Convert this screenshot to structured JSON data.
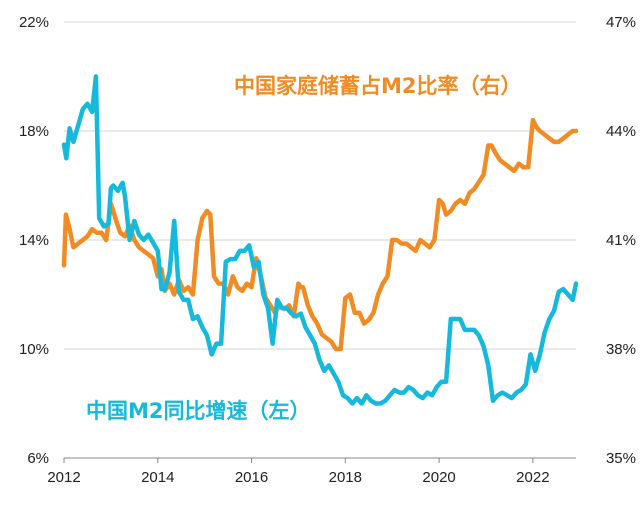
{
  "chart_data": {
    "type": "line",
    "xlabel": "",
    "ylabel_left": "",
    "ylabel_right": "",
    "x_ticks": [
      "2012",
      "2014",
      "2016",
      "2018",
      "2020",
      "2022"
    ],
    "xlim": [
      2012.0,
      2022.92
    ],
    "left_axis": {
      "ylim": [
        6,
        22
      ],
      "ticks": [
        "6%",
        "10%",
        "14%",
        "18%",
        "22%"
      ]
    },
    "right_axis": {
      "ylim": [
        35,
        47
      ],
      "ticks": [
        "35%",
        "38%",
        "41%",
        "44%",
        "47%"
      ]
    },
    "grid": "horizontal",
    "series": [
      {
        "name": "中国家庭储蓄占M2比率（右）",
        "axis": "right",
        "color": "#F08C23",
        "x": [
          2012.0,
          2012.04,
          2012.12,
          2012.2,
          2012.3,
          2012.4,
          2012.5,
          2012.6,
          2012.7,
          2012.8,
          2012.9,
          2013.0,
          2013.05,
          2013.12,
          2013.2,
          2013.3,
          2013.4,
          2013.5,
          2013.6,
          2013.7,
          2013.8,
          2013.9,
          2014.0,
          2014.08,
          2014.15,
          2014.25,
          2014.35,
          2014.45,
          2014.55,
          2014.65,
          2014.75,
          2014.85,
          2014.95,
          2015.05,
          2015.12,
          2015.2,
          2015.3,
          2015.4,
          2015.5,
          2015.6,
          2015.7,
          2015.8,
          2015.9,
          2016.0,
          2016.1,
          2016.2,
          2016.3,
          2016.4,
          2016.5,
          2016.6,
          2016.7,
          2016.8,
          2016.9,
          2017.0,
          2017.05,
          2017.1,
          2017.2,
          2017.3,
          2017.4,
          2017.5,
          2017.6,
          2017.7,
          2017.8,
          2017.9,
          2018.0,
          2018.1,
          2018.2,
          2018.3,
          2018.4,
          2018.5,
          2018.6,
          2018.7,
          2018.8,
          2018.9,
          2019.0,
          2019.1,
          2019.2,
          2019.3,
          2019.4,
          2019.5,
          2019.6,
          2019.7,
          2019.8,
          2019.9,
          2020.0,
          2020.08,
          2020.15,
          2020.25,
          2020.35,
          2020.45,
          2020.55,
          2020.65,
          2020.75,
          2020.85,
          2020.95,
          2021.05,
          2021.12,
          2021.2,
          2021.3,
          2021.4,
          2021.5,
          2021.6,
          2021.7,
          2021.8,
          2021.9,
          2022.0,
          2022.08,
          2022.15,
          2022.25,
          2022.35,
          2022.45,
          2022.55,
          2022.65,
          2022.75,
          2022.85,
          2022.92
        ],
        "values": [
          40.3,
          41.7,
          41.3,
          40.8,
          40.9,
          41.0,
          41.1,
          41.3,
          41.2,
          41.2,
          41.0,
          42.0,
          41.8,
          41.5,
          41.2,
          41.1,
          41.4,
          41.0,
          40.8,
          40.7,
          40.6,
          40.5,
          40.0,
          40.2,
          39.6,
          39.8,
          39.5,
          39.9,
          39.6,
          39.7,
          39.5,
          41.0,
          41.6,
          41.8,
          41.7,
          40.0,
          39.8,
          39.8,
          39.5,
          40.0,
          39.7,
          39.6,
          39.8,
          39.7,
          40.5,
          40.0,
          39.4,
          39.2,
          39.0,
          39.2,
          39.1,
          39.2,
          38.9,
          39.8,
          39.7,
          39.7,
          39.2,
          38.9,
          38.7,
          38.4,
          38.3,
          38.2,
          38.0,
          38.0,
          39.4,
          39.5,
          39.0,
          39.0,
          38.7,
          38.8,
          39.0,
          39.5,
          39.8,
          40.0,
          41.0,
          41.0,
          40.9,
          40.9,
          40.8,
          40.7,
          41.0,
          40.9,
          40.8,
          41.0,
          42.1,
          42.0,
          41.7,
          41.8,
          42.0,
          42.1,
          42.0,
          42.3,
          42.4,
          42.6,
          42.8,
          43.6,
          43.6,
          43.4,
          43.2,
          43.1,
          43.0,
          42.9,
          43.1,
          43.0,
          43.0,
          44.3,
          44.1,
          44.0,
          43.9,
          43.8,
          43.7,
          43.7,
          43.8,
          43.9,
          44.0,
          44.0
        ]
      },
      {
        "name": "中国M2同比增速（左）",
        "axis": "left",
        "color": "#15B9DB",
        "x": [
          2012.0,
          2012.05,
          2012.12,
          2012.2,
          2012.3,
          2012.4,
          2012.5,
          2012.6,
          2012.68,
          2012.72,
          2012.75,
          2012.85,
          2012.95,
          2013.0,
          2013.05,
          2013.15,
          2013.25,
          2013.3,
          2013.4,
          2013.5,
          2013.6,
          2013.7,
          2013.8,
          2013.9,
          2014.0,
          2014.08,
          2014.15,
          2014.25,
          2014.35,
          2014.45,
          2014.55,
          2014.65,
          2014.75,
          2014.85,
          2014.95,
          2015.05,
          2015.15,
          2015.25,
          2015.35,
          2015.45,
          2015.55,
          2015.65,
          2015.75,
          2015.85,
          2015.95,
          2016.05,
          2016.15,
          2016.25,
          2016.35,
          2016.45,
          2016.55,
          2016.65,
          2016.75,
          2016.85,
          2016.95,
          2017.05,
          2017.15,
          2017.25,
          2017.35,
          2017.45,
          2017.55,
          2017.65,
          2017.75,
          2017.85,
          2017.95,
          2018.05,
          2018.15,
          2018.25,
          2018.35,
          2018.45,
          2018.55,
          2018.65,
          2018.75,
          2018.85,
          2018.95,
          2019.05,
          2019.15,
          2019.25,
          2019.35,
          2019.45,
          2019.55,
          2019.65,
          2019.75,
          2019.85,
          2019.95,
          2020.05,
          2020.15,
          2020.25,
          2020.35,
          2020.45,
          2020.55,
          2020.65,
          2020.75,
          2020.85,
          2020.95,
          2021.05,
          2021.15,
          2021.25,
          2021.35,
          2021.45,
          2021.55,
          2021.65,
          2021.75,
          2021.85,
          2021.95,
          2022.05,
          2022.15,
          2022.25,
          2022.35,
          2022.45,
          2022.55,
          2022.65,
          2022.75,
          2022.85,
          2022.92
        ],
        "values": [
          17.5,
          17.0,
          18.1,
          17.6,
          18.2,
          18.8,
          19.0,
          18.7,
          20.0,
          17.0,
          14.8,
          14.5,
          14.6,
          15.9,
          16.0,
          15.8,
          16.1,
          15.6,
          14.0,
          14.7,
          14.2,
          14.0,
          14.2,
          13.9,
          13.6,
          12.2,
          12.2,
          12.8,
          14.7,
          12.1,
          11.8,
          11.8,
          11.1,
          11.2,
          10.8,
          10.5,
          9.8,
          10.2,
          10.2,
          13.2,
          13.3,
          13.3,
          13.6,
          13.6,
          13.8,
          13.0,
          13.2,
          12.0,
          11.5,
          10.2,
          11.8,
          11.5,
          11.5,
          11.3,
          11.2,
          11.3,
          10.8,
          10.5,
          10.2,
          9.6,
          9.2,
          9.4,
          9.1,
          8.8,
          8.3,
          8.2,
          8.0,
          8.2,
          8.0,
          8.3,
          8.1,
          8.0,
          8.0,
          8.1,
          8.3,
          8.5,
          8.4,
          8.4,
          8.6,
          8.5,
          8.3,
          8.2,
          8.4,
          8.3,
          8.6,
          8.8,
          8.8,
          11.1,
          11.1,
          11.1,
          10.7,
          10.7,
          10.7,
          10.5,
          10.1,
          9.4,
          8.1,
          8.3,
          8.4,
          8.3,
          8.2,
          8.4,
          8.5,
          8.7,
          9.8,
          9.2,
          9.8,
          10.6,
          11.1,
          11.4,
          12.1,
          12.2,
          12.0,
          11.8,
          12.4
        ]
      }
    ],
    "labels": {
      "household": "中国家庭储蓄占M2比率（右）",
      "m2": "中国M2同比增速（左）"
    }
  }
}
